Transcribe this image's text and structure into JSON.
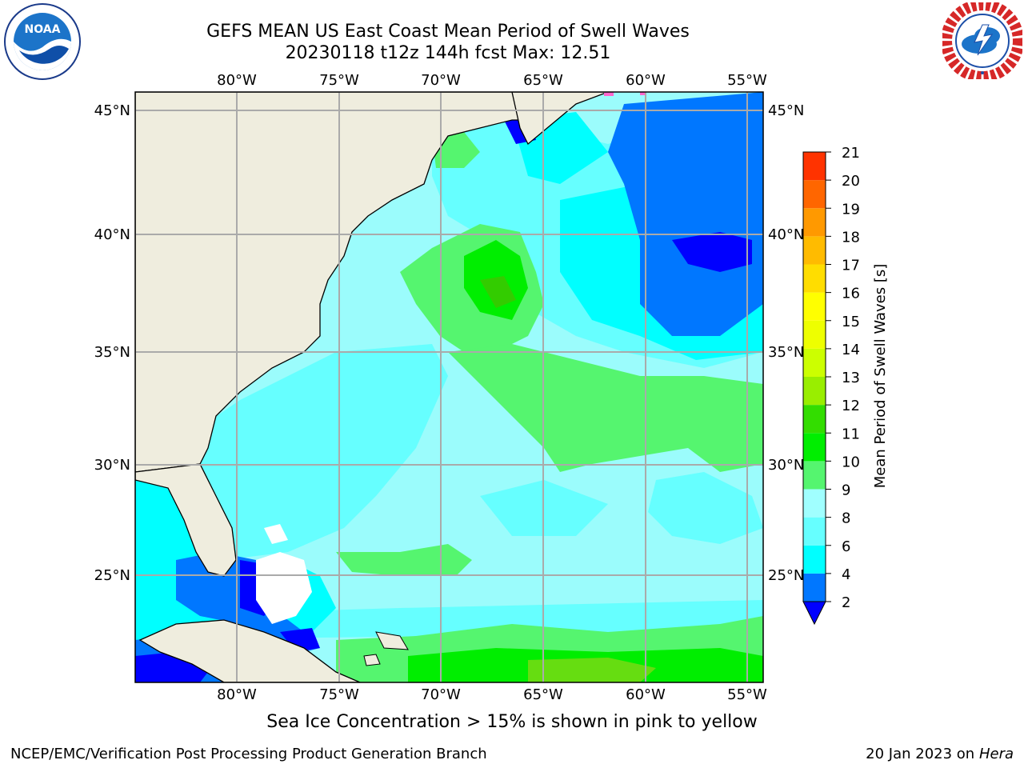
{
  "header": {
    "title_line1": "GEFS MEAN US East Coast Mean Period of Swell Waves",
    "title_line2": "20230118 t12z 144h fcst   Max: 12.51"
  },
  "logos": {
    "left": {
      "name": "noaa-logo",
      "text": "NOAA",
      "ring_text": "NATIONAL OCEANIC AND ATMOSPHERIC ADMINISTRATION · U.S. DEPARTMENT OF COMMERCE"
    },
    "right": {
      "name": "nws-logo",
      "ring_text": "NATIONAL WEATHER SERVICE"
    }
  },
  "map": {
    "lon_labels": [
      "80°W",
      "75°W",
      "70°W",
      "65°W",
      "60°W",
      "55°W"
    ],
    "lat_labels": [
      "45°N",
      "40°N",
      "35°N",
      "30°N",
      "25°N"
    ],
    "region": "US East Coast / Western North Atlantic",
    "colors": {
      "land": "#efedde",
      "ocean_base": "#9bfcfc",
      "cyan": "#00ffff",
      "light_cyan": "#66ffff",
      "green_light": "#55f56f",
      "green": "#00ee00",
      "green_yellow": "#77ee22",
      "blue": "#0077ff",
      "dark_blue": "#0000ff"
    }
  },
  "colorbar": {
    "label": "Mean Period of Swell Waves [s]",
    "ticks": [
      "2",
      "4",
      "6",
      "8",
      "9",
      "10",
      "11",
      "12",
      "13",
      "14",
      "15",
      "16",
      "17",
      "18",
      "19",
      "20",
      "21"
    ],
    "colors": [
      "#0077ff",
      "#00ffff",
      "#66ffff",
      "#a0ffff",
      "#55f56f",
      "#00ee00",
      "#33dd00",
      "#99ee00",
      "#ccff00",
      "#eeff00",
      "#ffff00",
      "#ffdd00",
      "#ffbb00",
      "#ff9900",
      "#ff6600",
      "#ff3300"
    ],
    "under_color": "#0000ff",
    "top_color": "#ff0000"
  },
  "footer": {
    "note": "Sea Ice Concentration > 15% is shown in pink to yellow",
    "credit_left": "NCEP/EMC/Verification Post Processing Product Generation Branch",
    "credit_right_date": "20 Jan 2023 on",
    "credit_right_machine": "Hera"
  }
}
